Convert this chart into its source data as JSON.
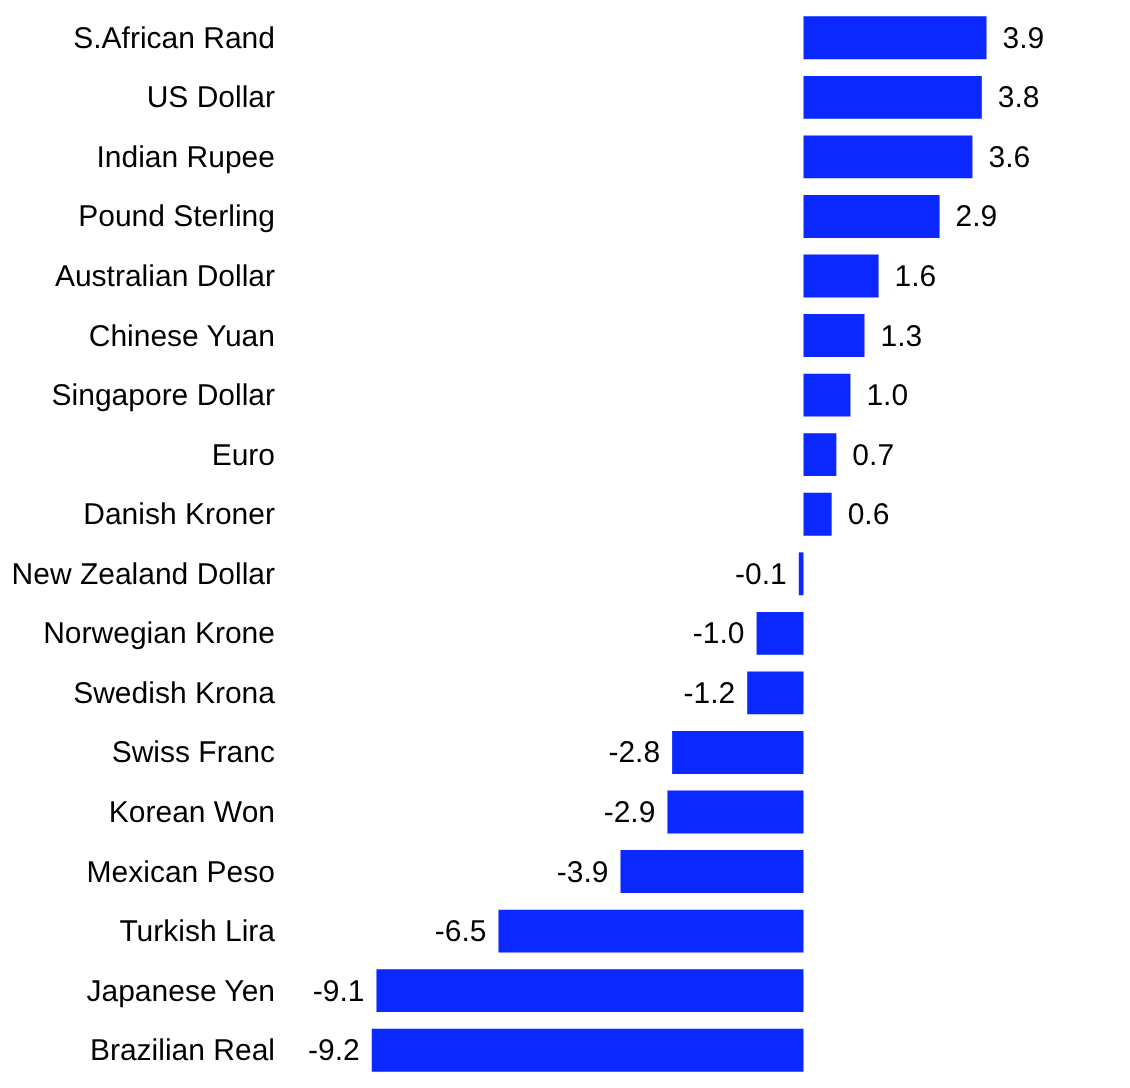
{
  "chart_data": {
    "type": "bar",
    "orientation": "horizontal",
    "color": "#0a28ff",
    "value_labels": [
      "3.9",
      "3.8",
      "3.6",
      "2.9",
      "1.6",
      "1.3",
      "1.0",
      "0.7",
      "0.6",
      "-0.1",
      "-1.0",
      "-1.2",
      "-2.8",
      "-2.9",
      "-3.9",
      "-6.5",
      "-9.1",
      "-9.2"
    ],
    "categories": [
      "S.African Rand",
      "US Dollar",
      "Indian Rupee",
      "Pound Sterling",
      "Australian Dollar",
      "Chinese Yuan",
      "Singapore Dollar",
      "Euro",
      "Danish Kroner",
      "New Zealand Dollar",
      "Norwegian Krone",
      "Swedish Krona",
      "Swiss Franc",
      "Korean Won",
      "Mexican Peso",
      "Turkish Lira",
      "Japanese Yen",
      "Brazilian Real"
    ],
    "values": [
      3.9,
      3.8,
      3.6,
      2.9,
      1.6,
      1.3,
      1.0,
      0.7,
      0.6,
      -0.1,
      -1.0,
      -1.2,
      -2.8,
      -2.9,
      -3.9,
      -6.5,
      -9.1,
      -9.2
    ]
  }
}
